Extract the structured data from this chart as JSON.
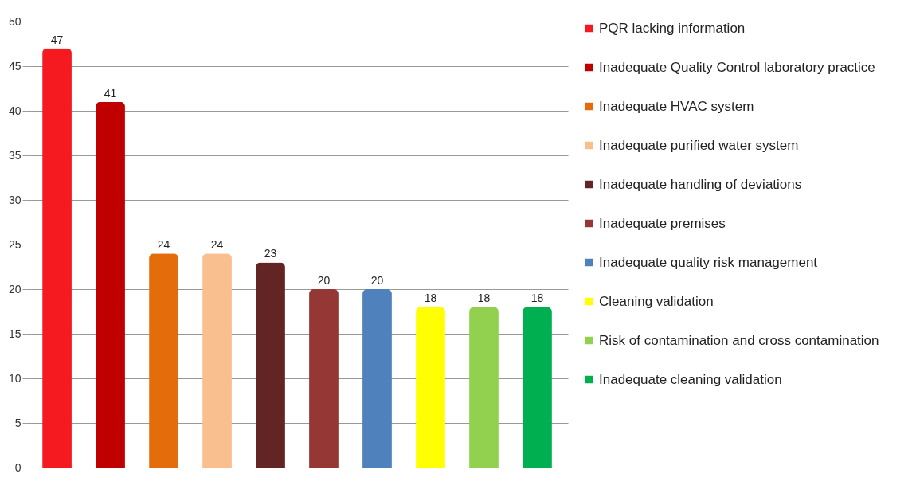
{
  "chart_data": {
    "type": "bar",
    "stacked": true,
    "categories": [
      null,
      null,
      null,
      null,
      null,
      null,
      null,
      null,
      null,
      null
    ],
    "series": [
      {
        "name": "PQR lacking information",
        "color": "#f41a1f",
        "values": [
          47,
          null,
          null,
          null,
          null,
          null,
          null,
          null,
          null,
          null
        ]
      },
      {
        "name": "Inadequate Quality Control  laboratory practice",
        "color": "#c00000",
        "values": [
          null,
          41,
          null,
          null,
          null,
          null,
          null,
          null,
          null,
          null
        ]
      },
      {
        "name": "Inadequate HVAC system",
        "color": "#e46c0a",
        "values": [
          null,
          null,
          24,
          null,
          null,
          null,
          null,
          null,
          null,
          null
        ]
      },
      {
        "name": "Inadequate purified water system",
        "color": "#f9bf8f",
        "values": [
          null,
          null,
          null,
          24,
          null,
          null,
          null,
          null,
          null,
          null
        ]
      },
      {
        "name": "Inadequate handling of deviations",
        "color": "#632523",
        "values": [
          null,
          null,
          null,
          null,
          23,
          null,
          null,
          null,
          null,
          null
        ]
      },
      {
        "name": "Inadequate premises",
        "color": "#953735",
        "values": [
          null,
          null,
          null,
          null,
          null,
          20,
          null,
          null,
          null,
          null
        ]
      },
      {
        "name": "Inadequate quality risk management",
        "color": "#4f81bd",
        "values": [
          null,
          null,
          null,
          null,
          null,
          null,
          20,
          null,
          null,
          null
        ]
      },
      {
        "name": "Cleaning validation",
        "color": "#ffff00",
        "values": [
          null,
          null,
          null,
          null,
          null,
          null,
          null,
          18,
          null,
          null
        ]
      },
      {
        "name": "Risk of contamination and cross contamination",
        "color": "#92d050",
        "values": [
          null,
          null,
          null,
          null,
          null,
          null,
          null,
          null,
          18,
          null
        ]
      },
      {
        "name": "Inadequate cleaning validation",
        "color": "#00b050",
        "values": [
          null,
          null,
          null,
          null,
          null,
          null,
          null,
          null,
          null,
          18
        ]
      }
    ],
    "ylim": [
      0,
      50
    ],
    "yticks": [
      0,
      5,
      10,
      15,
      20,
      25,
      30,
      35,
      40,
      45,
      50
    ],
    "grid": "y",
    "data_labels": true,
    "legend": "right"
  }
}
